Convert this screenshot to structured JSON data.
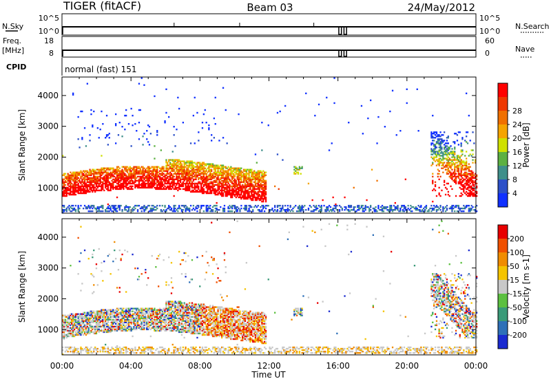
{
  "header": {
    "station": "TIGER (fitACF)",
    "beam": "Beam 03",
    "date": "24/May/2012"
  },
  "strips": {
    "nsky_label": "N.Sky",
    "nsky_ticks": [
      "10^5",
      "10^0"
    ],
    "nsearch_label": "N.Search",
    "nsearch_ticks": [
      "10^5",
      "10^0"
    ],
    "freq_label_1": "Freq.",
    "freq_label_2": "[MHz]",
    "freq_ticks": [
      "18",
      "8"
    ],
    "nave_label": "Nave",
    "nave_ticks": [
      "60",
      "0"
    ],
    "cpid_label": "CPID",
    "cpid_value": "normal (fast) 151"
  },
  "chart_data": [
    {
      "type": "heatmap",
      "ylabel": "Slant Range [km]",
      "ylim": [
        180,
        4600
      ],
      "yticks": [
        "1000",
        "2000",
        "3000",
        "4000"
      ],
      "xlim": [
        "00:00",
        "24:00"
      ],
      "colorbar_label": "Power [dB]",
      "colorbar_ticks": [
        "4",
        "8",
        "12",
        "16",
        "20",
        "24",
        "28"
      ],
      "colorbar_colors": [
        "#1030ff",
        "#2c50c8",
        "#3f8f8a",
        "#5cb042",
        "#cfe000",
        "#f5a400",
        "#f07000",
        "#ee3800",
        "#ff0000"
      ],
      "regions": [
        {
          "x": [
            0.0,
            11.8
          ],
          "y": [
            600,
            2300
          ],
          "level": "strong"
        },
        {
          "x": [
            13.4,
            13.9
          ],
          "y": [
            1400,
            1700
          ],
          "level": "weak"
        },
        {
          "x": [
            0.0,
            24.0
          ],
          "y": [
            180,
            450
          ],
          "level": "weak"
        },
        {
          "x": [
            21.3,
            24.0
          ],
          "y": [
            700,
            2800
          ],
          "level": "strong"
        }
      ]
    },
    {
      "type": "heatmap",
      "ylabel": "Slant Range [km]",
      "ylim": [
        180,
        4600
      ],
      "yticks": [
        "1000",
        "2000",
        "3000",
        "4000"
      ],
      "xlim": [
        "00:00",
        "24:00"
      ],
      "colorbar_label": "Velocity [m s-1]",
      "colorbar_ticks": [
        "200",
        "100",
        "50",
        "15",
        "-15",
        "-50",
        "-100",
        "-200"
      ],
      "colorbar_colors": [
        "#1a2ad0",
        "#2e70b8",
        "#3a9a78",
        "#5cc040",
        "#c8c8c8",
        "#f5c400",
        "#f08c00",
        "#f05000",
        "#e80000"
      ],
      "regions": [
        {
          "x": [
            0.0,
            11.8
          ],
          "y": [
            600,
            2300
          ],
          "level": "mixed"
        },
        {
          "x": [
            13.4,
            13.9
          ],
          "y": [
            1400,
            1700
          ],
          "level": "mixed"
        },
        {
          "x": [
            0.0,
            24.0
          ],
          "y": [
            180,
            450
          ],
          "level": "low"
        },
        {
          "x": [
            21.3,
            24.0
          ],
          "y": [
            700,
            2800
          ],
          "level": "mixed"
        }
      ]
    }
  ],
  "xaxis": {
    "ticks": [
      "00:00",
      "04:00",
      "08:00",
      "12:00",
      "16:00",
      "20:00",
      "00:00"
    ],
    "label": "Time UT"
  }
}
